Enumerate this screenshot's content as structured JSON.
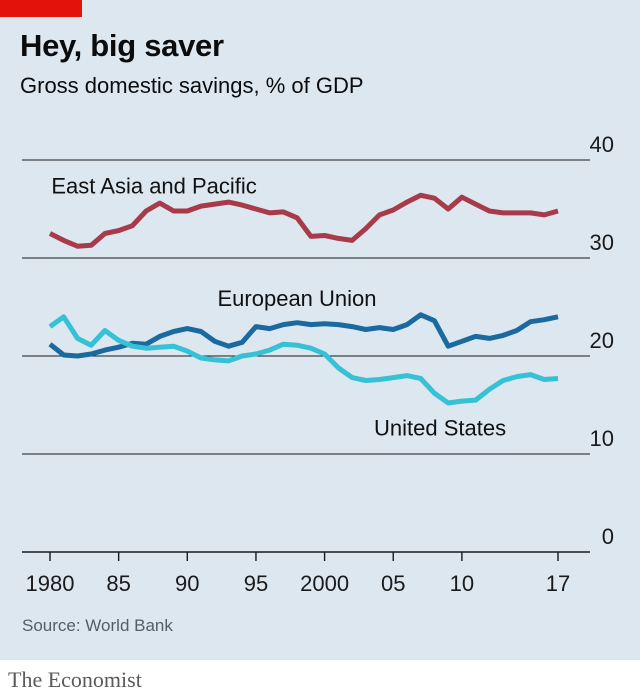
{
  "header": {
    "title": "Hey, big saver",
    "subtitle": "Gross domestic savings, % of GDP"
  },
  "footer": {
    "source": "Source: World Bank",
    "brand": "The Economist"
  },
  "colors": {
    "background": "#dce7f0",
    "accent_tag": "#e3120b",
    "east_asia": "#a83b4a",
    "european_union": "#1a6aa0",
    "united_states": "#36c1d6",
    "grid": "#1a1a1a"
  },
  "chart_data": {
    "type": "line",
    "title": "Hey, big saver",
    "subtitle": "Gross domestic savings, % of GDP",
    "ylim": [
      0,
      40
    ],
    "xlim": [
      1980,
      2017
    ],
    "yticks": [
      0,
      10,
      20,
      30,
      40
    ],
    "y_axis_side": "right",
    "grid": true,
    "x_ticks": [
      {
        "value": 1980,
        "label": "1980"
      },
      {
        "value": 1985,
        "label": "85"
      },
      {
        "value": 1990,
        "label": "90"
      },
      {
        "value": 1995,
        "label": "95"
      },
      {
        "value": 2000,
        "label": "2000"
      },
      {
        "value": 2005,
        "label": "05"
      },
      {
        "value": 2010,
        "label": "10"
      },
      {
        "value": 2017,
        "label": "17"
      }
    ],
    "series": [
      {
        "name": "East Asia and Pacific",
        "color": "#a83b4a",
        "x": [
          1980,
          1981,
          1982,
          1983,
          1984,
          1985,
          1986,
          1987,
          1988,
          1989,
          1990,
          1991,
          1992,
          1993,
          1994,
          1995,
          1996,
          1997,
          1998,
          1999,
          2000,
          2001,
          2002,
          2003,
          2004,
          2005,
          2006,
          2007,
          2008,
          2009,
          2010,
          2011,
          2012,
          2013,
          2014,
          2015,
          2016,
          2017
        ],
        "values": [
          32.5,
          31.8,
          31.2,
          31.3,
          32.5,
          32.8,
          33.3,
          34.8,
          35.6,
          34.8,
          34.8,
          35.3,
          35.5,
          35.7,
          35.4,
          35.0,
          34.6,
          34.7,
          34.1,
          32.2,
          32.3,
          32.0,
          31.8,
          33.0,
          34.4,
          34.9,
          35.7,
          36.4,
          36.1,
          35.0,
          36.2,
          35.5,
          34.8,
          34.6,
          34.6,
          34.6,
          34.4,
          34.8
        ]
      },
      {
        "name": "European Union",
        "color": "#1a6aa0",
        "x": [
          1980,
          1981,
          1982,
          1983,
          1984,
          1985,
          1986,
          1987,
          1988,
          1989,
          1990,
          1991,
          1992,
          1993,
          1994,
          1995,
          1996,
          1997,
          1998,
          1999,
          2000,
          2001,
          2002,
          2003,
          2004,
          2005,
          2006,
          2007,
          2008,
          2009,
          2010,
          2011,
          2012,
          2013,
          2014,
          2015,
          2016,
          2017
        ],
        "values": [
          21.2,
          20.1,
          20.0,
          20.2,
          20.6,
          20.9,
          21.3,
          21.2,
          22.0,
          22.5,
          22.8,
          22.5,
          21.5,
          21.0,
          21.4,
          23.0,
          22.8,
          23.2,
          23.4,
          23.2,
          23.3,
          23.2,
          23.0,
          22.7,
          22.9,
          22.7,
          23.2,
          24.2,
          23.6,
          21.0,
          21.5,
          22.0,
          21.8,
          22.1,
          22.6,
          23.5,
          23.7,
          24.0
        ]
      },
      {
        "name": "United States",
        "color": "#36c1d6",
        "x": [
          1980,
          1981,
          1982,
          1983,
          1984,
          1985,
          1986,
          1987,
          1988,
          1989,
          1990,
          1991,
          1992,
          1993,
          1994,
          1995,
          1996,
          1997,
          1998,
          1999,
          2000,
          2001,
          2002,
          2003,
          2004,
          2005,
          2006,
          2007,
          2008,
          2009,
          2010,
          2011,
          2012,
          2013,
          2014,
          2015,
          2016,
          2017
        ],
        "values": [
          23.0,
          24.0,
          21.8,
          21.1,
          22.6,
          21.6,
          21.0,
          20.8,
          20.9,
          21.0,
          20.5,
          19.8,
          19.6,
          19.5,
          20.0,
          20.2,
          20.6,
          21.2,
          21.1,
          20.8,
          20.2,
          18.8,
          17.8,
          17.5,
          17.6,
          17.8,
          18.0,
          17.7,
          16.2,
          15.2,
          15.4,
          15.5,
          16.6,
          17.5,
          17.9,
          18.1,
          17.6,
          17.7
        ]
      }
    ],
    "annotations": [
      {
        "text": "East Asia and Pacific",
        "series": "East Asia and Pacific",
        "x": 1980.1,
        "y": 36.6
      },
      {
        "text": "European Union",
        "series": "European Union",
        "x": 1992.2,
        "y": 25.1
      },
      {
        "text": "United States",
        "series": "United States",
        "x": 2003.6,
        "y": 11.9
      }
    ]
  }
}
